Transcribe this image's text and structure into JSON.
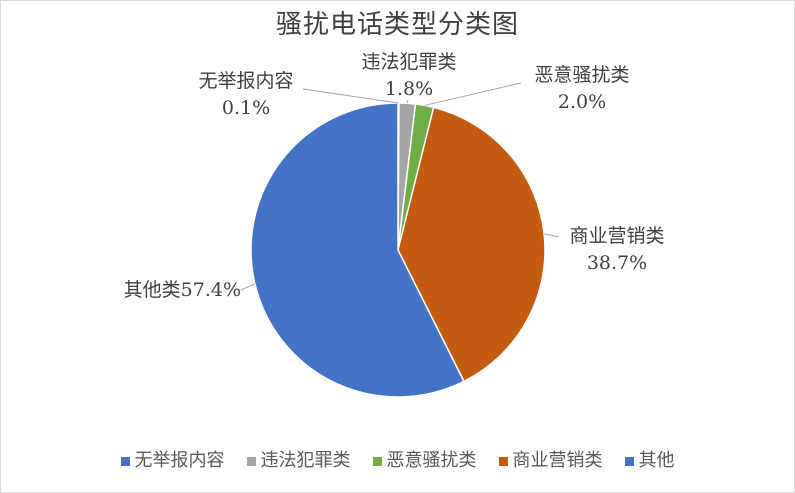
{
  "chart_data": {
    "type": "pie",
    "title": "骚扰电话类型分类图",
    "categories": [
      "无举报内容",
      "违法犯罪类",
      "恶意骚扰类",
      "商业营销类",
      "其他"
    ],
    "values": [
      0.1,
      1.8,
      2.0,
      38.7,
      57.4
    ],
    "colors": [
      "#4472C4",
      "#A5A5A5",
      "#70AD47",
      "#C55A11",
      "#4472C4"
    ],
    "data_labels": [
      {
        "name": "无举报内容",
        "value": "0.1%"
      },
      {
        "name": "违法犯罪类",
        "value": "1.8%"
      },
      {
        "name": "恶意骚扰类",
        "value": "2.0%"
      },
      {
        "name": "商业营销类",
        "value": "38.7%"
      },
      {
        "name": "其他类",
        "value": "57.4%"
      }
    ],
    "legend": {
      "position": "bottom"
    }
  }
}
